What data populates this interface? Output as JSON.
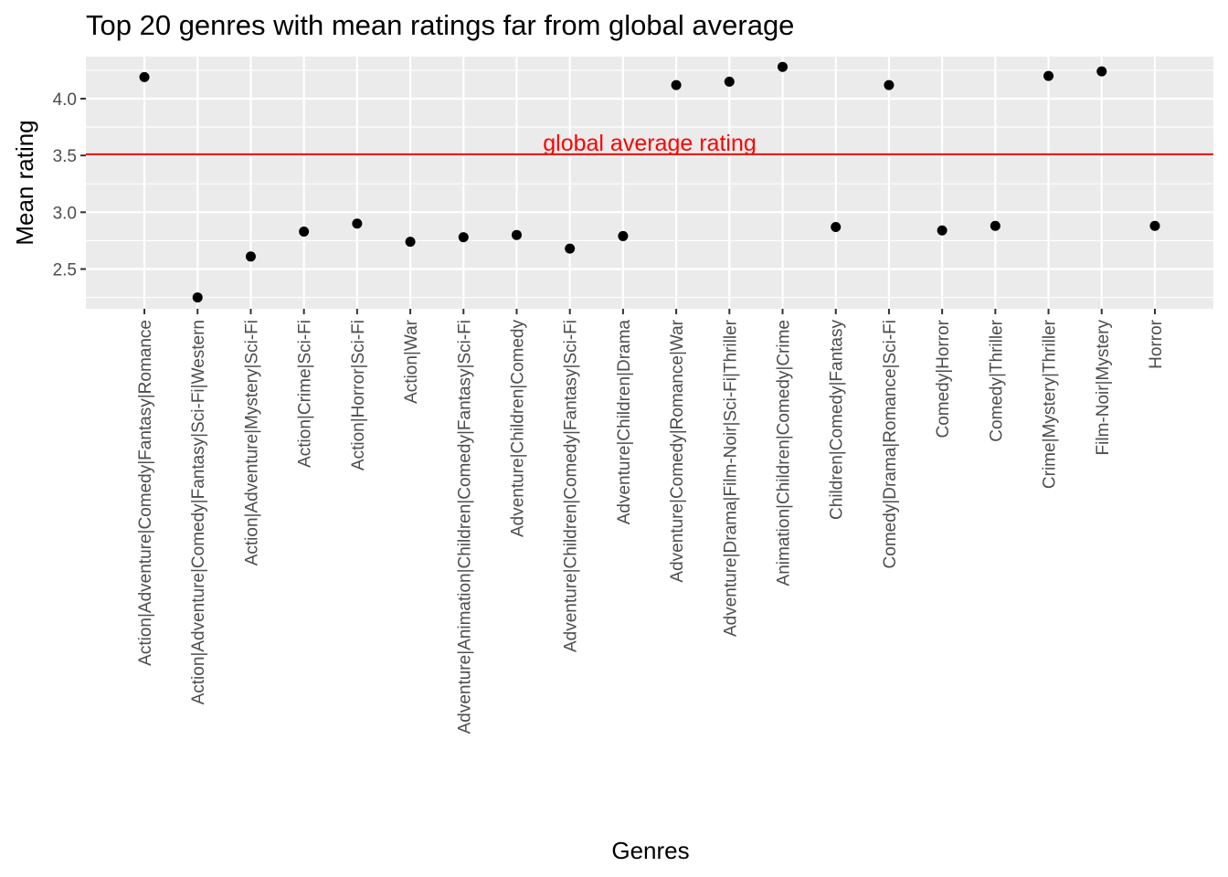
{
  "chart_data": {
    "type": "scatter",
    "title": "Top 20 genres with mean ratings far from global average",
    "xlabel": "Genres",
    "ylabel": "Mean rating",
    "ylim": [
      2.15,
      4.37
    ],
    "yticks": [
      2.5,
      3.0,
      3.5,
      4.0
    ],
    "ytick_labels": [
      "2.5",
      "3.0",
      "3.5",
      "4.0"
    ],
    "grid": true,
    "legend": "none",
    "categories": [
      "Action|Adventure|Comedy|Fantasy|Romance",
      "Action|Adventure|Comedy|Fantasy|Sci-Fi|Western",
      "Action|Adventure|Mystery|Sci-Fi",
      "Action|Crime|Sci-Fi",
      "Action|Horror|Sci-Fi",
      "Action|War",
      "Adventure|Animation|Children|Comedy|Fantasy|Sci-Fi",
      "Adventure|Children|Comedy",
      "Adventure|Children|Comedy|Fantasy|Sci-Fi",
      "Adventure|Children|Drama",
      "Adventure|Comedy|Romance|War",
      "Adventure|Drama|Film-Noir|Sci-Fi|Thriller",
      "Animation|Children|Comedy|Crime",
      "Children|Comedy|Fantasy",
      "Comedy|Drama|Romance|Sci-Fi",
      "Comedy|Horror",
      "Comedy|Thriller",
      "Crime|Mystery|Thriller",
      "Film-Noir|Mystery",
      "Horror"
    ],
    "values": [
      4.19,
      2.25,
      2.61,
      2.83,
      2.9,
      2.74,
      2.78,
      2.8,
      2.68,
      2.79,
      4.12,
      4.15,
      4.28,
      2.87,
      4.12,
      2.84,
      2.88,
      4.2,
      4.24,
      2.88
    ],
    "reference_line": {
      "value": 3.51,
      "label": "global average rating",
      "color": "#ff0000"
    },
    "colors": {
      "panel": "#ebebeb",
      "grid": "#ffffff",
      "point": "#000000"
    }
  }
}
